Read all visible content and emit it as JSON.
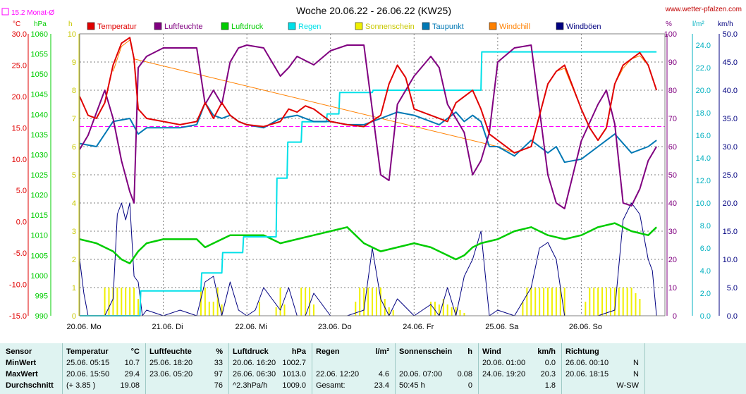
{
  "title": "Woche 20.06.22 - 26.06.22 (KW25)",
  "source": "www.wetter-pfalzen.com",
  "monthly_avg_label": "15.2 Monat-Ø",
  "units": {
    "temp": "°C",
    "pressure": "hPa",
    "hours": "h",
    "humidity": "%",
    "rain": "l/m²",
    "wind": "km/h"
  },
  "colors": {
    "temp": "#e00000",
    "humidity": "#800080",
    "pressure": "#00cc00",
    "rain": "#00e0e8",
    "sun": "#f0f000",
    "dewpoint": "#0078b4",
    "windchill": "#ff8000",
    "gust": "#000080",
    "avg": "#ff00ff"
  },
  "chart_data": {
    "type": "line",
    "title": "Woche 20.06.22 - 26.06.22 (KW25)",
    "x_ticks": [
      "20.06. Mo",
      "21.06. Di",
      "22.06. Mi",
      "23.06. Do",
      "24.06. Fr",
      "25.06. Sa",
      "26.06. So"
    ],
    "x_range_days": [
      0,
      7
    ],
    "axes": {
      "temp": {
        "range": [
          -15,
          30
        ],
        "ticks": [
          "30.0",
          "25.0",
          "20.0",
          "15.0",
          "10.0",
          "5.0",
          "0.0",
          "-5.0",
          "-10.0",
          "-15.0"
        ]
      },
      "pressure": {
        "range": [
          990,
          1060
        ],
        "ticks": [
          "1060",
          "1055",
          "1050",
          "1045",
          "1040",
          "1035",
          "1030",
          "1025",
          "1020",
          "1015",
          "1010",
          "1005",
          "1000",
          "995",
          "990"
        ]
      },
      "sun": {
        "range": [
          0,
          10
        ],
        "ticks": [
          "10",
          "9",
          "8",
          "7",
          "6",
          "5",
          "4",
          "3",
          "2",
          "1",
          "0"
        ]
      },
      "humidity": {
        "range": [
          0,
          100
        ],
        "ticks": [
          "100",
          "90",
          "80",
          "70",
          "60",
          "50",
          "40",
          "30",
          "20",
          "10",
          "0"
        ]
      },
      "rain": {
        "range": [
          0,
          25
        ],
        "ticks": [
          "24.0",
          "22.0",
          "20.0",
          "18.0",
          "16.0",
          "14.0",
          "12.0",
          "10.0",
          "8.0",
          "6.0",
          "4.0",
          "2.0",
          "0.0"
        ]
      },
      "wind": {
        "range": [
          0,
          50
        ],
        "ticks": [
          "50.0",
          "45.0",
          "40.0",
          "35.0",
          "30.0",
          "25.0",
          "20.0",
          "15.0",
          "10.0",
          "5.0",
          "0.0"
        ]
      }
    },
    "monthly_avg_temp": 15.2,
    "legend": [
      "Temperatur",
      "Luftfeuchte",
      "Luftdruck",
      "Regen",
      "Sonnenschein",
      "Taupunkt",
      "Windchill",
      "Windböen"
    ],
    "series": [
      {
        "name": "Temperatur",
        "axis": "temp",
        "x": [
          0,
          0.1,
          0.2,
          0.3,
          0.4,
          0.5,
          0.6,
          0.65,
          0.7,
          0.8,
          1.0,
          1.2,
          1.4,
          1.5,
          1.6,
          1.7,
          1.8,
          1.9,
          2.0,
          2.2,
          2.4,
          2.5,
          2.6,
          2.7,
          2.8,
          3.0,
          3.2,
          3.4,
          3.6,
          3.7,
          3.8,
          3.9,
          4.0,
          4.2,
          4.4,
          4.5,
          4.6,
          4.7,
          4.8,
          4.9,
          5.0,
          5.2,
          5.4,
          5.6,
          5.7,
          5.8,
          6.0,
          6.1,
          6.2,
          6.3,
          6.4,
          6.5,
          6.6,
          6.7,
          6.8,
          6.9
        ],
        "y": [
          20,
          17,
          16.5,
          19,
          25,
          28.5,
          29.4,
          26,
          18,
          16.5,
          16,
          15.5,
          16,
          19,
          16.5,
          19,
          17,
          16,
          15.5,
          15.2,
          16,
          18,
          17.5,
          18.5,
          18,
          16,
          15.5,
          15.2,
          17,
          22,
          25,
          23,
          18,
          17,
          16,
          19,
          20,
          21,
          18,
          14,
          13,
          11,
          12,
          22,
          24,
          25,
          18,
          15,
          13,
          15,
          22,
          25,
          26,
          27,
          25,
          21
        ]
      },
      {
        "name": "Windchill",
        "axis": "temp",
        "x": [
          0.4,
          0.5,
          0.6,
          0.65,
          5.0,
          5.2,
          5.4,
          5.6,
          5.7,
          5.8,
          6.0,
          6.1,
          6.2,
          6.3,
          6.4,
          6.5,
          6.6,
          6.7,
          6.8
        ],
        "y": [
          24,
          28,
          29,
          26,
          12,
          11,
          12,
          22,
          24,
          24.5,
          18,
          15,
          13,
          15,
          22,
          24.5,
          26,
          26.5,
          25
        ]
      },
      {
        "name": "Taupunkt",
        "axis": "temp",
        "x": [
          0,
          0.2,
          0.4,
          0.6,
          0.7,
          0.8,
          1.0,
          1.2,
          1.4,
          1.5,
          1.6,
          1.7,
          1.8,
          1.9,
          2.0,
          2.2,
          2.4,
          2.6,
          2.8,
          3.0,
          3.2,
          3.4,
          3.6,
          3.8,
          4.0,
          4.2,
          4.3,
          4.4,
          4.5,
          4.6,
          4.7,
          4.8,
          4.9,
          5.0,
          5.2,
          5.4,
          5.6,
          5.7,
          5.8,
          6.0,
          6.2,
          6.3,
          6.4,
          6.6,
          6.8,
          6.9
        ],
        "y": [
          12.5,
          12,
          16,
          16.5,
          14,
          15,
          15,
          15,
          15.5,
          19,
          17,
          16.5,
          17,
          16,
          15.5,
          15,
          16.5,
          17,
          16,
          16,
          15.5,
          15.5,
          16.5,
          17.5,
          17,
          16,
          15.5,
          16.5,
          17.5,
          16,
          17,
          16,
          12,
          12,
          10.5,
          13,
          11,
          12,
          9.5,
          10,
          12,
          13,
          14,
          11,
          12,
          13
        ]
      },
      {
        "name": "Luftfeuchte",
        "axis": "humidity",
        "x": [
          0,
          0.1,
          0.2,
          0.3,
          0.4,
          0.5,
          0.6,
          0.65,
          0.7,
          0.8,
          1.0,
          1.2,
          1.4,
          1.5,
          1.6,
          1.7,
          1.8,
          1.9,
          2.0,
          2.2,
          2.4,
          2.5,
          2.6,
          2.8,
          3.0,
          3.2,
          3.4,
          3.6,
          3.7,
          3.8,
          4.0,
          4.2,
          4.3,
          4.4,
          4.5,
          4.6,
          4.7,
          4.8,
          4.9,
          5.0,
          5.2,
          5.4,
          5.6,
          5.7,
          5.8,
          6.0,
          6.2,
          6.3,
          6.4,
          6.5,
          6.6,
          6.7,
          6.8,
          6.9
        ],
        "y": [
          59,
          64,
          72,
          80,
          70,
          55,
          44,
          40,
          88,
          92,
          95,
          95,
          95,
          75,
          80,
          75,
          90,
          95,
          96,
          95,
          85,
          88,
          92,
          89,
          94,
          96,
          96,
          50,
          48,
          75,
          85,
          92,
          88,
          75,
          70,
          65,
          50,
          55,
          65,
          90,
          95,
          96,
          50,
          40,
          38,
          62,
          75,
          80,
          68,
          40,
          39,
          45,
          55,
          60
        ]
      },
      {
        "name": "Luftdruck",
        "axis": "pressure",
        "x": [
          0,
          0.2,
          0.4,
          0.5,
          0.6,
          0.7,
          0.8,
          1.0,
          1.2,
          1.4,
          1.5,
          1.6,
          1.8,
          2.0,
          2.2,
          2.4,
          2.6,
          2.8,
          3.0,
          3.2,
          3.4,
          3.6,
          3.8,
          4.0,
          4.2,
          4.4,
          4.5,
          4.6,
          4.7,
          4.8,
          5.0,
          5.2,
          5.4,
          5.6,
          5.8,
          6.0,
          6.2,
          6.4,
          6.6,
          6.8,
          6.9
        ],
        "y": [
          1009,
          1008,
          1006,
          1004,
          1003,
          1006,
          1008,
          1009,
          1009,
          1009,
          1007,
          1008,
          1010,
          1010,
          1010,
          1008,
          1009,
          1010,
          1011,
          1012,
          1008,
          1006,
          1007,
          1008,
          1007,
          1005,
          1004,
          1005,
          1007,
          1008,
          1009,
          1011,
          1012,
          1010,
          1009,
          1010,
          1012,
          1013,
          1011,
          1010,
          1012
        ]
      },
      {
        "name": "Regen",
        "axis": "rain",
        "x": [
          0,
          0.72,
          0.73,
          1.45,
          1.46,
          1.7,
          1.71,
          1.95,
          1.96,
          2.35,
          2.36,
          2.48,
          2.49,
          2.65,
          2.66,
          2.95,
          2.96,
          3.1,
          3.11,
          3.5,
          3.51,
          4.8,
          4.81,
          4.95,
          4.96,
          6.9
        ],
        "y": [
          0,
          0,
          2.2,
          2.2,
          3.8,
          3.8,
          5.6,
          5.6,
          7.0,
          7.0,
          12.2,
          12.2,
          15.4,
          15.4,
          17.2,
          17.2,
          17.9,
          17.9,
          19.8,
          19.8,
          20.0,
          20.0,
          23.4,
          23.4,
          23.4,
          23.4
        ]
      },
      {
        "name": "Windböen",
        "axis": "wind",
        "x": [
          0,
          0.05,
          0.1,
          0.2,
          0.3,
          0.4,
          0.45,
          0.5,
          0.55,
          0.6,
          0.65,
          0.7,
          0.75,
          0.8,
          1.0,
          1.2,
          1.4,
          1.5,
          1.6,
          1.7,
          1.8,
          1.9,
          2.0,
          2.1,
          2.2,
          2.4,
          2.5,
          2.6,
          2.7,
          2.8,
          3.0,
          3.2,
          3.4,
          3.5,
          3.6,
          3.7,
          3.8,
          4.0,
          4.2,
          4.3,
          4.4,
          4.5,
          4.6,
          4.7,
          4.8,
          4.9,
          5.0,
          5.2,
          5.4,
          5.5,
          5.6,
          5.7,
          5.8,
          6.0,
          6.2,
          6.4,
          6.5,
          6.6,
          6.7,
          6.8,
          6.85,
          6.9
        ],
        "y": [
          10,
          4,
          0,
          0,
          0,
          3,
          18,
          20,
          17,
          20,
          7,
          6,
          0,
          1,
          0,
          1,
          0,
          6,
          7,
          0,
          6,
          1,
          0,
          1,
          5,
          1,
          5,
          0,
          0,
          4,
          0,
          0,
          1,
          12,
          3,
          0,
          3,
          0,
          2,
          0,
          5,
          0,
          7,
          10,
          15,
          0,
          1,
          0,
          5,
          12,
          13,
          10,
          0,
          0,
          0,
          1,
          17,
          20,
          18,
          10,
          8,
          0
        ]
      },
      {
        "name": "Sonnenschein",
        "axis": "sun",
        "x": [
          0.3,
          0.35,
          0.4,
          0.45,
          0.5,
          0.55,
          0.6,
          0.65,
          0.7,
          1.45,
          1.5,
          1.55,
          1.6,
          1.65,
          1.7,
          2.15,
          2.35,
          2.4,
          2.45,
          2.65,
          2.7,
          2.75,
          2.8,
          3.3,
          3.35,
          3.4,
          3.45,
          3.5,
          3.55,
          3.6,
          3.65,
          3.7,
          3.75,
          4.2,
          4.25,
          4.3,
          4.35,
          4.4,
          4.45,
          4.5,
          4.55,
          4.6,
          5.3,
          5.35,
          5.4,
          5.45,
          5.5,
          5.55,
          5.6,
          5.65,
          5.7,
          5.75,
          5.8,
          6.05,
          6.1,
          6.15,
          6.2,
          6.25,
          6.3,
          6.35,
          6.4,
          6.45,
          6.5,
          6.55,
          6.6,
          6.65,
          6.7
        ],
        "y": [
          1,
          1,
          1,
          1,
          1,
          1,
          1,
          1,
          0.6,
          1,
          1,
          0.5,
          0.5,
          1,
          0.4,
          0.5,
          0.3,
          1,
          0.4,
          1,
          1,
          1,
          0.4,
          0.5,
          1,
          1,
          1,
          1,
          1,
          1,
          0.6,
          0.3,
          0.2,
          0.5,
          0.5,
          0.4,
          0.6,
          0.4,
          0.3,
          0.3,
          0.2,
          0.1,
          0.5,
          1,
          1,
          1,
          1,
          1,
          1,
          1,
          1,
          1,
          1,
          0.5,
          1,
          1,
          1,
          1,
          1,
          1,
          1,
          1,
          1,
          1,
          1,
          0.8,
          0.6
        ]
      }
    ]
  },
  "table": {
    "headers": {
      "sensor": "Sensor",
      "temp": "Temperatur",
      "temp_unit": "°C",
      "hum": "Luftfeuchte",
      "hum_unit": "%",
      "press": "Luftdruck",
      "press_unit": "hPa",
      "rain": "Regen",
      "rain_unit": "l/m²",
      "sun": "Sonnenschein",
      "sun_unit": "h",
      "wind": "Wind",
      "wind_unit": "km/h",
      "dir": "Richtung"
    },
    "rows": [
      {
        "label": "MinWert",
        "temp_t": "25.06. 05:15",
        "temp_v": "10.7",
        "hum_t": "25.06. 18:20",
        "hum_v": "33",
        "press_t": "20.06. 16:20",
        "press_v": "1002.7",
        "rain_t": "",
        "rain_v": "",
        "sun_t": "",
        "sun_v": "",
        "wind_t": "20.06. 01:00",
        "wind_v": "0.0",
        "dir_t": "26.06. 00:10",
        "dir_v": "N"
      },
      {
        "label": "MaxWert",
        "temp_t": "20.06. 15:50",
        "temp_v": "29.4",
        "hum_t": "23.06. 05:20",
        "hum_v": "97",
        "press_t": "26.06. 06:30",
        "press_v": "1013.0",
        "rain_t": "22.06. 12:20",
        "rain_v": "4.6",
        "sun_t": "20.06. 07:00",
        "sun_v": "0.08",
        "wind_t": "24.06. 19:20",
        "wind_v": "20.3",
        "dir_t": "20.06. 18:15",
        "dir_v": "N"
      },
      {
        "label": "Durchschnitt",
        "temp_t": "(+ 3.85 )",
        "temp_v": "19.08",
        "hum_t": "",
        "hum_v": "76",
        "press_t": "^2.3hPa/h",
        "press_v": "1009.0",
        "rain_t": "Gesamt:",
        "rain_v": "23.4",
        "sun_t": "50:45 h",
        "sun_v": "0",
        "wind_t": "",
        "wind_v": "1.8",
        "dir_t": "",
        "dir_v": "W-SW"
      }
    ]
  }
}
